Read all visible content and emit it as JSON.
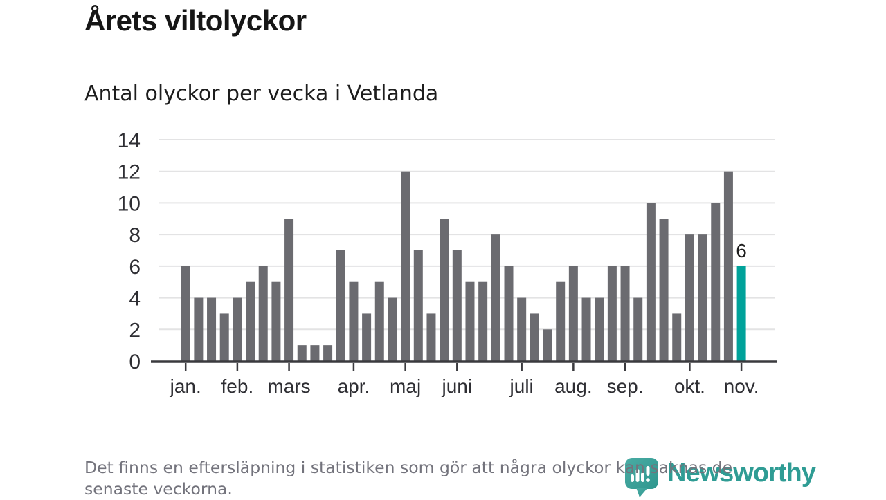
{
  "header": {
    "title": "Årets viltolyckor",
    "subtitle": "Antal olyckor per vecka i Vetlanda"
  },
  "chart_data": {
    "type": "bar",
    "title": "Årets viltolyckor",
    "subtitle": "Antal olyckor per vecka i Vetlanda",
    "unit": "olyckor per vecka",
    "values": [
      6,
      4,
      4,
      3,
      4,
      5,
      6,
      5,
      9,
      1,
      1,
      1,
      7,
      5,
      3,
      5,
      4,
      12,
      7,
      3,
      9,
      7,
      5,
      5,
      8,
      6,
      4,
      3,
      2,
      5,
      6,
      4,
      4,
      6,
      6,
      4,
      10,
      9,
      3,
      8,
      8,
      10,
      12,
      6
    ],
    "highlight_index": 43,
    "highlight_value_label": "6",
    "month_ticks": [
      {
        "label": "jan.",
        "week": 1
      },
      {
        "label": "feb.",
        "week": 5
      },
      {
        "label": "mars",
        "week": 9
      },
      {
        "label": "apr.",
        "week": 14
      },
      {
        "label": "maj",
        "week": 18
      },
      {
        "label": "juni",
        "week": 22
      },
      {
        "label": "juli",
        "week": 27
      },
      {
        "label": "aug.",
        "week": 31
      },
      {
        "label": "sep.",
        "week": 35
      },
      {
        "label": "okt.",
        "week": 40
      },
      {
        "label": "nov.",
        "week": 44
      }
    ],
    "ylim": [
      0,
      14
    ],
    "yticks": [
      0,
      2,
      4,
      6,
      8,
      10,
      12,
      14
    ],
    "grid": true,
    "legend": "none",
    "colors": {
      "bar": "#6b6b70",
      "highlight": "#00a29a",
      "grid": "#e3e3e4",
      "axis": "#3a3a3e",
      "tick_text": "#2e2e33",
      "value_label": "#1d1d1d"
    }
  },
  "footer": {
    "line1": "Det finns en eftersläpning i statistiken som gör att några olyckor kan saknas de",
    "line2": "senaste veckorna.",
    "logo_text": "Newsworthy",
    "logo_color": "#2f9c94"
  }
}
